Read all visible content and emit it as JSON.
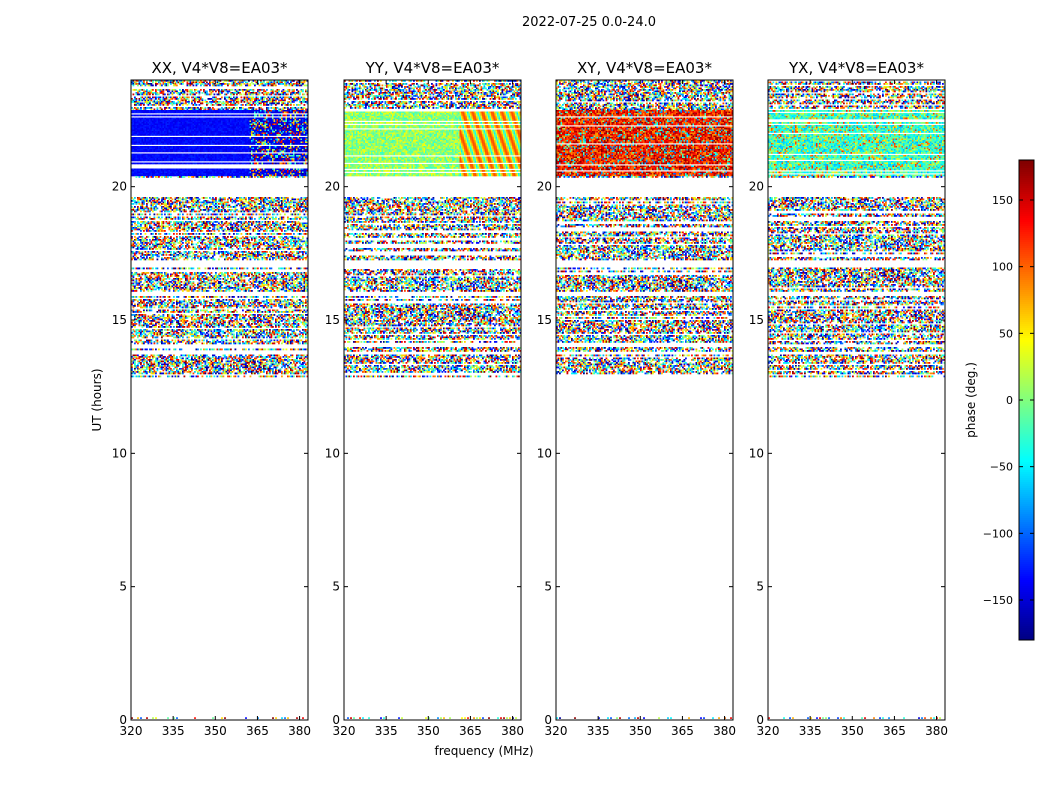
{
  "figure": {
    "title": "2022-07-25 0.0-24.0",
    "xlabel": "frequency (MHz)",
    "ylabel": "UT (hours)"
  },
  "chart_data": {
    "type": "heatmap",
    "colormap": "jet",
    "panels": [
      {
        "title": "XX, V4*V8=EA03*",
        "pattern": "xx"
      },
      {
        "title": "YY, V4*V8=EA03*",
        "pattern": "yy"
      },
      {
        "title": "XY, V4*V8=EA03*",
        "pattern": "xy"
      },
      {
        "title": "YX, V4*V8=EA03*",
        "pattern": "yx"
      }
    ],
    "x_axis": {
      "range": [
        320,
        383
      ],
      "ticks": [
        320,
        335,
        350,
        365,
        380
      ],
      "tick_labels": [
        "320",
        "335",
        "350",
        "365",
        "380"
      ]
    },
    "y_axis": {
      "range": [
        0,
        24
      ],
      "ticks": [
        0,
        5,
        10,
        15,
        20
      ],
      "tick_labels": [
        "0",
        "5",
        "10",
        "15",
        "20"
      ]
    },
    "colorbar": {
      "label": "phase (deg.)",
      "range": [
        -180,
        180
      ],
      "ticks": [
        -150,
        -100,
        -50,
        0,
        50,
        100,
        150
      ],
      "tick_labels": [
        "−150",
        "−100",
        "−50",
        "0",
        "50",
        "100",
        "150"
      ]
    },
    "data_coverage_hours": [
      [
        0,
        0.1
      ],
      [
        12.9,
        24.0
      ]
    ]
  }
}
